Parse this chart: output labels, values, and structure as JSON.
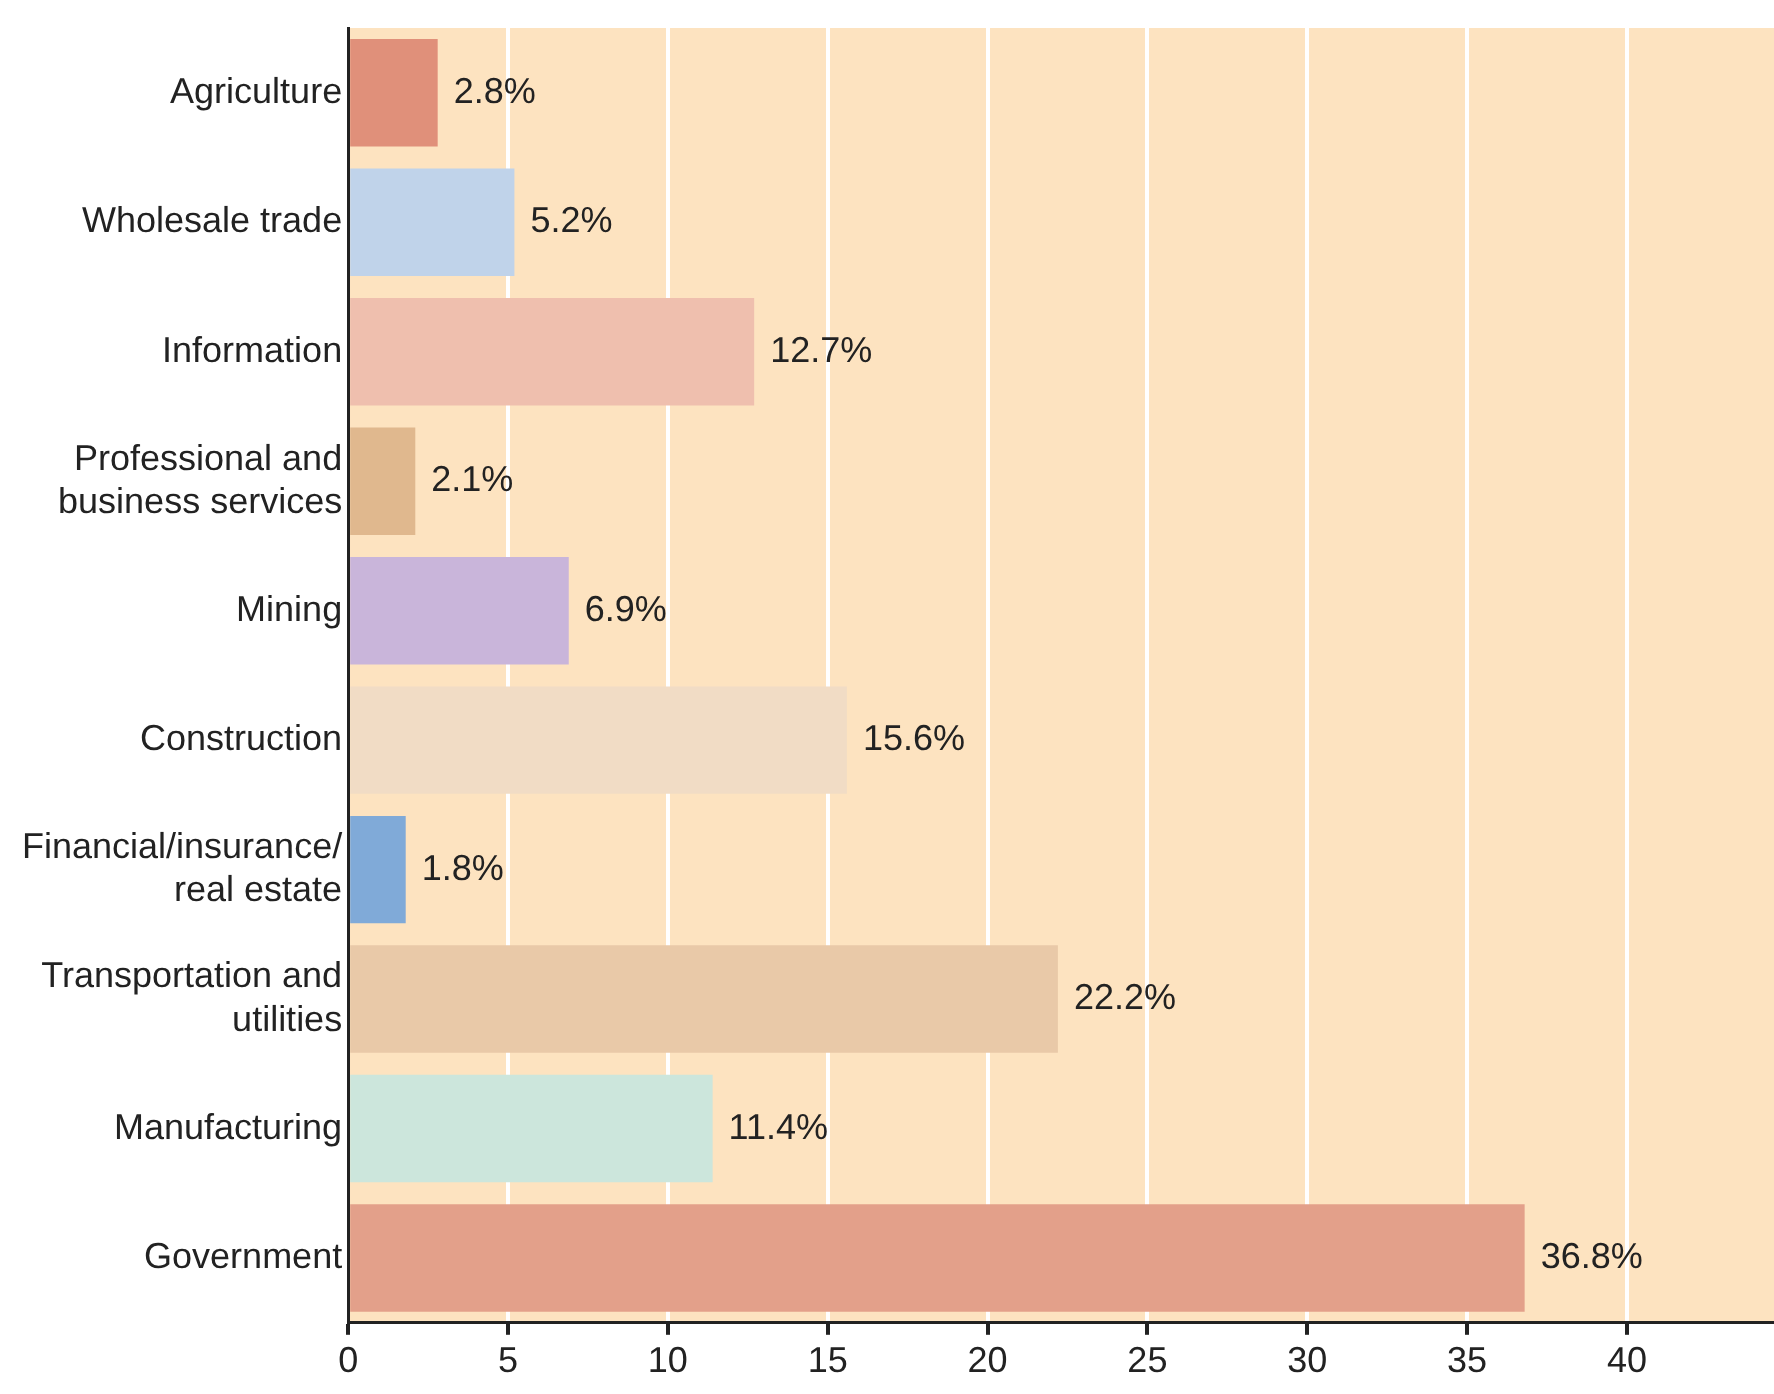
{
  "chart_data": {
    "type": "bar",
    "orientation": "horizontal",
    "categories": [
      "Agriculture",
      "Wholesale trade",
      "Information",
      "Professional and business services",
      "Mining",
      "Construction",
      "Financial/insurance/ real estate",
      "Transportation and utilities",
      "Manufacturing",
      "Government"
    ],
    "values": [
      2.8,
      5.2,
      12.7,
      2.1,
      6.9,
      15.6,
      1.8,
      22.2,
      11.4,
      36.8
    ],
    "value_labels": [
      "2.8%",
      "5.2%",
      "12.7%",
      "2.1%",
      "6.9%",
      "15.6%",
      "1.8%",
      "22.2%",
      "11.4%",
      "36.8%"
    ],
    "colors": [
      "#e0907a",
      "#c0d3ea",
      "#efbfae",
      "#e0b88e",
      "#c9b5da",
      "#f1dcc5",
      "#80aad8",
      "#e9c9a8",
      "#cce6dc",
      "#e3a08a"
    ],
    "xlim": [
      0,
      44.6
    ],
    "xticks": [
      0,
      5,
      10,
      15,
      20,
      25,
      30,
      35,
      40
    ],
    "grid": "x"
  }
}
